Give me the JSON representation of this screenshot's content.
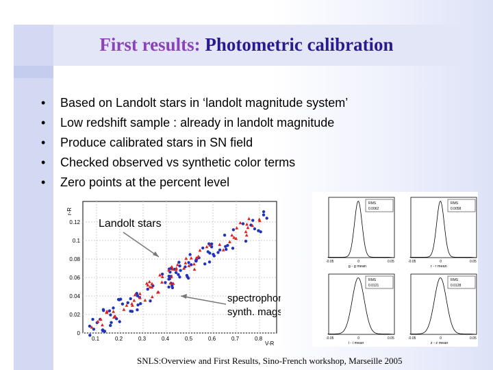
{
  "slide": {
    "title_part1": "First results:",
    "title_part2": "Photometric calibration",
    "bullets": [
      "Based on Landolt stars in ‘landolt magnitude system’",
      "Low redshift sample : already in landolt magnitude",
      "Produce calibrated stars in SN field",
      "Checked observed vs synthetic color terms",
      "Zero points at the percent level"
    ],
    "footer": "SNLS:Overview and First Results, Sino-French workshop, Marseille 2005"
  },
  "scatter_plot": {
    "ylabel": "r-R",
    "xlabel": "V-R",
    "annotation_landolt": "Landolt stars",
    "annotation_spectro_1": "spectrophometric",
    "annotation_spectro_2": "synth. mags",
    "colors": {
      "landolt": "#2233bb",
      "spectro": "#dd2222"
    }
  },
  "histograms": {
    "rms_label": "RMS",
    "panels": [
      {
        "rms_value": "0.0062",
        "x_label": "g - g mean",
        "tick_left": "-0.05",
        "tick_mid": "0",
        "tick_right": "0.05"
      },
      {
        "rms_value": "0.0058",
        "x_label": "r - r mean",
        "tick_left": "-0.05",
        "tick_mid": "0",
        "tick_right": "0.05"
      },
      {
        "rms_value": "0.0121",
        "x_label": "i - i mean",
        "tick_left": "-0.05",
        "tick_mid": "0",
        "tick_right": "0.05"
      },
      {
        "rms_value": "0.0128",
        "x_label": "z - z mean",
        "tick_left": "-0.05",
        "tick_mid": "0",
        "tick_right": "0.05"
      }
    ]
  }
}
